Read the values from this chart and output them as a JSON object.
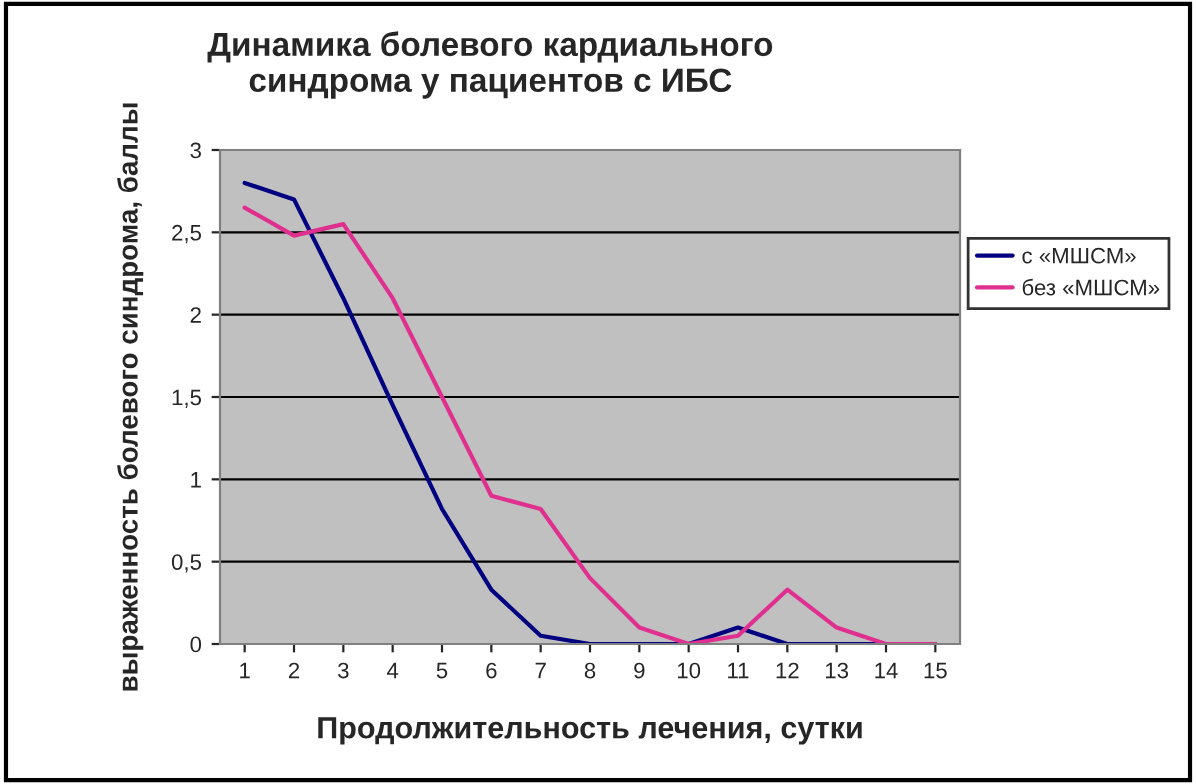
{
  "chart_data": {
    "type": "line",
    "title": "Динамика болевого кардиального\nсиндрома у пациентов с ИБС",
    "xlabel": "Продолжительность лечения, сутки",
    "ylabel": "выраженность болевого синдрома, баллы",
    "categories": [
      "1",
      "2",
      "3",
      "4",
      "5",
      "6",
      "7",
      "8",
      "9",
      "10",
      "11",
      "12",
      "13",
      "14",
      "15"
    ],
    "series": [
      {
        "name": "с «МШСМ»",
        "color": "#000080",
        "values": [
          2.8,
          2.7,
          2.1,
          1.45,
          0.82,
          0.33,
          0.05,
          0,
          0,
          0,
          0.1,
          0,
          0,
          0,
          0
        ]
      },
      {
        "name": "без «МШСМ»",
        "color": "#e0308f",
        "values": [
          2.65,
          2.48,
          2.55,
          2.1,
          1.5,
          0.9,
          0.82,
          0.4,
          0.1,
          0,
          0.05,
          0.33,
          0.1,
          0,
          0
        ]
      }
    ],
    "ylim": [
      0,
      3
    ],
    "yticks": [
      0,
      {
        "value": 0.5,
        "label": "0,5"
      },
      1,
      {
        "value": 1.5,
        "label": "1,5"
      },
      2,
      {
        "value": 2.5,
        "label": "2,5"
      },
      3
    ],
    "grid": "y",
    "legend": "right",
    "marker": "none",
    "line_style": "solid"
  }
}
